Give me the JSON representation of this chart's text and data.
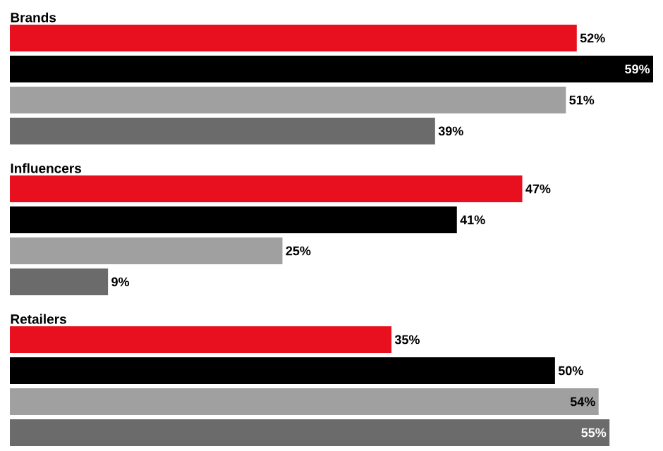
{
  "chart_data": [
    {
      "type": "bar",
      "orientation": "horizontal",
      "title": "Brands",
      "categories": [
        null,
        null,
        null,
        null
      ],
      "values": [
        52,
        59,
        51,
        39
      ],
      "value_labels": [
        "52%",
        "59%",
        "51%",
        "39%"
      ],
      "colors": [
        "#e8101e",
        "#000000",
        "#a0a0a0",
        "#6b6b6b"
      ]
    },
    {
      "type": "bar",
      "orientation": "horizontal",
      "title": "Influencers",
      "categories": [
        null,
        null,
        null,
        null
      ],
      "values": [
        47,
        41,
        25,
        9
      ],
      "value_labels": [
        "47%",
        "41%",
        "25%",
        "9%"
      ],
      "colors": [
        "#e8101e",
        "#000000",
        "#a0a0a0",
        "#6b6b6b"
      ]
    },
    {
      "type": "bar",
      "orientation": "horizontal",
      "title": "Retailers",
      "categories": [
        null,
        null,
        null,
        null
      ],
      "values": [
        35,
        50,
        54,
        55
      ],
      "value_labels": [
        "35%",
        "50%",
        "54%",
        "55%"
      ],
      "colors": [
        "#e8101e",
        "#000000",
        "#a0a0a0",
        "#6b6b6b"
      ]
    }
  ]
}
